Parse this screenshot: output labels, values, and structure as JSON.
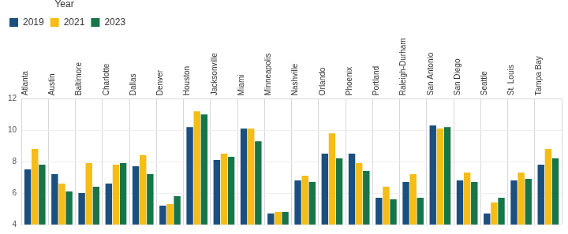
{
  "chart_data": {
    "type": "bar",
    "legend_title": "Year",
    "categories": [
      "Atlanta",
      "Austin",
      "Baltimore",
      "Charlotte",
      "Dallas",
      "Denver",
      "Houston",
      "Jacksonville",
      "Miami",
      "Minneapolis",
      "Nashville",
      "Orlando",
      "Phoenix",
      "Portland",
      "Raleigh-Durham",
      "San Antonio",
      "San Diego",
      "Seattle",
      "St. Louis",
      "Tampa Bay"
    ],
    "series": [
      {
        "name": "2019",
        "color": "#1b4f80",
        "values": [
          7.5,
          7.2,
          6.0,
          6.6,
          7.7,
          5.2,
          10.2,
          8.1,
          10.1,
          4.7,
          6.8,
          8.5,
          8.5,
          5.7,
          6.7,
          10.3,
          6.8,
          4.7,
          6.8,
          7.8
        ]
      },
      {
        "name": "2021",
        "color": "#f6bd16",
        "values": [
          8.8,
          6.6,
          7.9,
          7.8,
          8.4,
          5.3,
          11.2,
          8.5,
          10.1,
          4.8,
          7.1,
          9.8,
          7.9,
          6.4,
          7.2,
          10.1,
          7.3,
          5.4,
          7.3,
          8.8
        ]
      },
      {
        "name": "2023",
        "color": "#17754a",
        "values": [
          7.8,
          6.1,
          6.4,
          7.9,
          7.2,
          5.8,
          11.0,
          8.3,
          9.3,
          4.8,
          6.7,
          8.2,
          7.4,
          5.6,
          5.7,
          10.2,
          6.7,
          5.7,
          6.9,
          8.2
        ]
      }
    ],
    "ylim": [
      4,
      12
    ],
    "yticks": [
      4,
      6,
      8,
      10,
      12
    ],
    "grid": true,
    "legend": "top-left"
  }
}
